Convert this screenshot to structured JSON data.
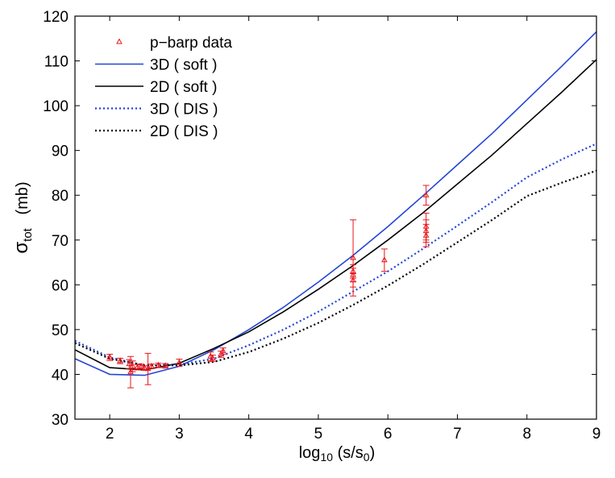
{
  "chart_data": {
    "type": "line",
    "xlabel": {
      "base": "log",
      "sub": "10",
      "rest": " (s/s",
      "sub2": "0",
      "end": ")"
    },
    "ylabel": {
      "sym": "σ",
      "sub": "tot",
      "rest": "   (mb)"
    },
    "xlim": [
      1.5,
      9
    ],
    "ylim": [
      30,
      120
    ],
    "xticks": [
      2,
      3,
      4,
      5,
      6,
      7,
      8,
      9
    ],
    "yticks": [
      30,
      40,
      50,
      60,
      70,
      80,
      90,
      100,
      110,
      120
    ],
    "grid": false,
    "legend_position": "top-left",
    "colors": {
      "blue": "#2346d6",
      "black": "#000000",
      "red": "#e8161b"
    },
    "legend": [
      {
        "label": "p−barp data",
        "style": "marker"
      },
      {
        "label": "3D ( soft )",
        "style": "blue-solid"
      },
      {
        "label": "2D ( soft )",
        "style": "black-solid"
      },
      {
        "label": "3D ( DIS )",
        "style": "blue-dotted"
      },
      {
        "label": "2D ( DIS )",
        "style": "black-dotted"
      }
    ],
    "series": [
      {
        "name": "3D ( soft )",
        "style": "blue-solid",
        "x": [
          1.5,
          2.0,
          2.5,
          3.0,
          3.5,
          4.0,
          4.5,
          5.0,
          5.5,
          6.0,
          6.5,
          7.0,
          7.5,
          8.0,
          8.5,
          9.0
        ],
        "y": [
          43.5,
          40.0,
          39.8,
          41.8,
          45.5,
          50.0,
          55.0,
          60.6,
          66.6,
          73.0,
          79.8,
          86.8,
          93.8,
          101.3,
          108.8,
          116.5
        ]
      },
      {
        "name": "2D ( soft )",
        "style": "black-solid",
        "x": [
          1.5,
          2.0,
          2.5,
          3.0,
          3.5,
          4.0,
          4.5,
          5.0,
          5.5,
          6.0,
          6.5,
          7.0,
          7.5,
          8.0,
          8.5,
          9.0
        ],
        "y": [
          45.5,
          41.5,
          41.0,
          42.5,
          45.8,
          49.5,
          54.0,
          59.0,
          64.3,
          70.0,
          76.0,
          82.5,
          89.0,
          96.0,
          103.0,
          110.3
        ]
      },
      {
        "name": "3D ( DIS )",
        "style": "blue-dotted",
        "x": [
          1.5,
          2.0,
          2.5,
          3.0,
          3.5,
          4.0,
          4.5,
          5.0,
          5.5,
          6.0,
          6.5,
          7.0,
          7.5,
          8.0,
          8.5,
          9.0
        ],
        "y": [
          47.5,
          43.8,
          42.0,
          42.2,
          43.5,
          46.5,
          50.0,
          54.0,
          58.5,
          63.0,
          68.0,
          73.2,
          78.5,
          84.0,
          88.0,
          91.5
        ]
      },
      {
        "name": "2D ( DIS )",
        "style": "black-dotted",
        "x": [
          1.5,
          2.0,
          2.5,
          3.0,
          3.5,
          4.0,
          4.5,
          5.0,
          5.5,
          6.0,
          6.5,
          7.0,
          7.5,
          8.0,
          8.5,
          9.0
        ],
        "y": [
          47.0,
          43.5,
          42.0,
          42.0,
          42.8,
          45.0,
          48.0,
          51.5,
          55.5,
          59.8,
          64.5,
          69.5,
          74.5,
          79.8,
          82.8,
          85.5
        ]
      }
    ],
    "data_points": [
      {
        "x": 2.0,
        "y": 43.8,
        "err": 0.7
      },
      {
        "x": 2.15,
        "y": 43.0,
        "err": 0.6
      },
      {
        "x": 2.28,
        "y": 42.3,
        "err": 1.0
      },
      {
        "x": 2.3,
        "y": 40.5,
        "err": 3.5
      },
      {
        "x": 2.33,
        "y": 41.8,
        "err": 1.2
      },
      {
        "x": 2.4,
        "y": 41.6,
        "err": 0.6
      },
      {
        "x": 2.45,
        "y": 41.8,
        "err": 0.5
      },
      {
        "x": 2.5,
        "y": 41.4,
        "err": 0.5
      },
      {
        "x": 2.55,
        "y": 41.2,
        "err": 3.5
      },
      {
        "x": 2.6,
        "y": 41.8,
        "err": 0.5
      },
      {
        "x": 2.7,
        "y": 42.0,
        "err": 0.5
      },
      {
        "x": 2.8,
        "y": 41.9,
        "err": 0.5
      },
      {
        "x": 3.0,
        "y": 42.6,
        "err": 0.8
      },
      {
        "x": 3.45,
        "y": 44.0,
        "err": 1.0
      },
      {
        "x": 3.48,
        "y": 43.6,
        "err": 0.7
      },
      {
        "x": 3.6,
        "y": 44.5,
        "err": 0.7
      },
      {
        "x": 3.63,
        "y": 45.2,
        "err": 0.7
      },
      {
        "x": 5.5,
        "y": 66.0,
        "err": 8.5
      },
      {
        "x": 5.5,
        "y": 63.0,
        "err": 1.5
      },
      {
        "x": 5.5,
        "y": 62.2,
        "err": 1.5
      },
      {
        "x": 5.5,
        "y": 61.0,
        "err": 1.5
      },
      {
        "x": 5.95,
        "y": 65.5,
        "err": 2.5
      },
      {
        "x": 6.55,
        "y": 80.0,
        "err": 2.2
      },
      {
        "x": 6.55,
        "y": 73.0,
        "err": 3.0
      },
      {
        "x": 6.55,
        "y": 72.0,
        "err": 2.5
      },
      {
        "x": 6.55,
        "y": 71.0,
        "err": 2.5
      }
    ]
  }
}
